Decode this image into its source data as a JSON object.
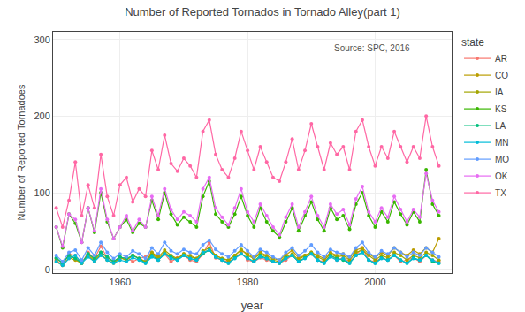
{
  "chart_data": {
    "type": "line",
    "title": "Number of Reported Tornados in Tornado Alley(part 1)",
    "xlabel": "year",
    "ylabel": "Number of Reported Tornadoes",
    "annotations": [
      {
        "text": "Source: SPC, 2016"
      }
    ],
    "legend_title": "state",
    "legend": "right",
    "grid": true,
    "marker": "circle",
    "line_style": "solid",
    "xlim": [
      1949.5,
      2012
    ],
    "xticks": [
      1960,
      1980,
      2000
    ],
    "ylim": [
      -5,
      310
    ],
    "yticks": [
      0,
      100,
      200,
      300
    ],
    "x": [
      1950,
      1951,
      1952,
      1953,
      1954,
      1955,
      1956,
      1957,
      1958,
      1959,
      1960,
      1961,
      1962,
      1963,
      1964,
      1965,
      1966,
      1967,
      1968,
      1969,
      1970,
      1971,
      1972,
      1973,
      1974,
      1975,
      1976,
      1977,
      1978,
      1979,
      1980,
      1981,
      1982,
      1983,
      1984,
      1985,
      1986,
      1987,
      1988,
      1989,
      1990,
      1991,
      1992,
      1993,
      1994,
      1995,
      1996,
      1997,
      1998,
      1999,
      2000,
      2001,
      2002,
      2003,
      2004,
      2005,
      2006,
      2007,
      2008,
      2009,
      2010
    ],
    "series": [
      {
        "name": "AR",
        "color": "#F8766D",
        "values": [
          12,
          5,
          20,
          18,
          8,
          22,
          14,
          30,
          15,
          10,
          14,
          16,
          10,
          14,
          16,
          22,
          12,
          20,
          10,
          15,
          18,
          12,
          10,
          20,
          35,
          15,
          12,
          10,
          15,
          22,
          12,
          10,
          15,
          12,
          10,
          8,
          12,
          18,
          10,
          15,
          20,
          12,
          10,
          18,
          12,
          15,
          10,
          18,
          28,
          12,
          10,
          15,
          12,
          18,
          10,
          12,
          15,
          10,
          18,
          12,
          10
        ]
      },
      {
        "name": "CO",
        "color": "#BB9D00",
        "values": [
          10,
          5,
          15,
          12,
          8,
          18,
          10,
          20,
          12,
          8,
          15,
          12,
          18,
          14,
          10,
          20,
          14,
          22,
          16,
          14,
          20,
          18,
          14,
          22,
          25,
          18,
          14,
          12,
          18,
          25,
          20,
          15,
          22,
          18,
          14,
          12,
          18,
          25,
          15,
          18,
          22,
          18,
          14,
          22,
          18,
          20,
          15,
          25,
          28,
          20,
          15,
          22,
          18,
          28,
          22,
          18,
          25,
          20,
          28,
          22,
          40
        ]
      },
      {
        "name": "IA",
        "color": "#A3A500",
        "values": [
          14,
          8,
          18,
          14,
          8,
          20,
          12,
          22,
          16,
          10,
          16,
          12,
          18,
          14,
          10,
          22,
          16,
          25,
          18,
          14,
          20,
          16,
          14,
          24,
          28,
          18,
          14,
          12,
          18,
          26,
          18,
          14,
          20,
          16,
          12,
          10,
          16,
          20,
          12,
          18,
          22,
          16,
          12,
          20,
          16,
          18,
          12,
          22,
          25,
          18,
          12,
          18,
          15,
          22,
          18,
          12,
          18,
          15,
          22,
          18,
          12
        ]
      },
      {
        "name": "KS",
        "color": "#39B600",
        "values": [
          55,
          28,
          72,
          60,
          35,
          80,
          48,
          100,
          62,
          40,
          55,
          65,
          48,
          60,
          55,
          90,
          65,
          100,
          72,
          58,
          68,
          62,
          55,
          95,
          115,
          72,
          62,
          55,
          72,
          95,
          70,
          55,
          80,
          62,
          50,
          42,
          62,
          80,
          50,
          70,
          88,
          65,
          50,
          80,
          65,
          70,
          52,
          85,
          100,
          70,
          55,
          75,
          62,
          88,
          72,
          58,
          75,
          62,
          130,
          85,
          70
        ]
      },
      {
        "name": "LA",
        "color": "#00BF7D",
        "values": [
          15,
          8,
          18,
          14,
          8,
          20,
          14,
          22,
          16,
          10,
          16,
          14,
          18,
          14,
          8,
          18,
          12,
          20,
          16,
          12,
          18,
          14,
          12,
          20,
          25,
          16,
          12,
          8,
          15,
          20,
          15,
          10,
          18,
          14,
          10,
          8,
          15,
          18,
          10,
          15,
          20,
          12,
          8,
          18,
          14,
          12,
          8,
          18,
          22,
          12,
          8,
          15,
          12,
          18,
          12,
          8,
          15,
          12,
          18,
          10,
          8
        ]
      },
      {
        "name": "MN",
        "color": "#00BCD8",
        "values": [
          10,
          5,
          14,
          18,
          8,
          16,
          10,
          18,
          12,
          8,
          12,
          10,
          15,
          12,
          8,
          16,
          12,
          20,
          14,
          12,
          18,
          14,
          12,
          22,
          25,
          16,
          12,
          8,
          14,
          20,
          14,
          10,
          16,
          14,
          10,
          8,
          14,
          18,
          10,
          14,
          20,
          12,
          8,
          16,
          12,
          14,
          8,
          18,
          22,
          12,
          8,
          14,
          12,
          18,
          12,
          8,
          14,
          12,
          18,
          12,
          8
        ]
      },
      {
        "name": "MO",
        "color": "#619CFF",
        "values": [
          18,
          10,
          22,
          25,
          12,
          28,
          18,
          35,
          22,
          14,
          20,
          16,
          24,
          20,
          14,
          28,
          20,
          35,
          24,
          20,
          26,
          22,
          20,
          32,
          38,
          26,
          20,
          16,
          24,
          32,
          24,
          16,
          26,
          22,
          16,
          12,
          22,
          28,
          18,
          24,
          32,
          22,
          16,
          26,
          22,
          20,
          16,
          28,
          35,
          22,
          16,
          24,
          20,
          28,
          22,
          16,
          22,
          18,
          28,
          22,
          16
        ]
      },
      {
        "name": "OK",
        "color": "#E76BF3",
        "values": [
          55,
          30,
          72,
          65,
          35,
          80,
          50,
          105,
          65,
          40,
          55,
          70,
          50,
          65,
          55,
          95,
          70,
          105,
          78,
          65,
          75,
          70,
          62,
          105,
          120,
          80,
          68,
          58,
          80,
          105,
          75,
          62,
          85,
          70,
          55,
          45,
          68,
          85,
          55,
          75,
          95,
          70,
          55,
          85,
          72,
          78,
          58,
          92,
          108,
          75,
          62,
          80,
          68,
          95,
          78,
          62,
          78,
          68,
          125,
          90,
          75
        ]
      },
      {
        "name": "TX",
        "color": "#FF67A4",
        "values": [
          80,
          55,
          90,
          140,
          70,
          110,
          80,
          150,
          95,
          70,
          110,
          120,
          88,
          105,
          95,
          155,
          130,
          175,
          138,
          128,
          145,
          135,
          120,
          180,
          195,
          150,
          130,
          120,
          145,
          180,
          155,
          130,
          160,
          140,
          120,
          115,
          140,
          170,
          130,
          155,
          190,
          160,
          130,
          165,
          150,
          160,
          130,
          180,
          195,
          160,
          135,
          160,
          145,
          180,
          160,
          140,
          160,
          145,
          200,
          160,
          135
        ]
      }
    ]
  }
}
